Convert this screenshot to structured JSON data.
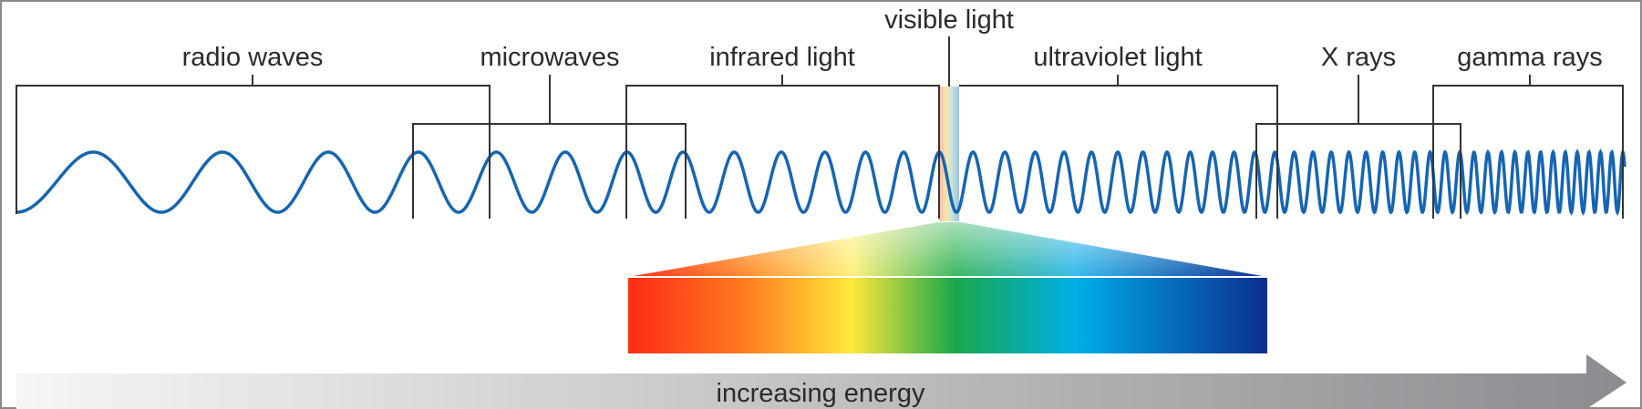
{
  "diagram": {
    "bands": [
      {
        "key": "radio",
        "label": "radio waves"
      },
      {
        "key": "micro",
        "label": "microwaves"
      },
      {
        "key": "infrared",
        "label": "infrared light"
      },
      {
        "key": "visible",
        "label": "visible light"
      },
      {
        "key": "ultraviolet",
        "label": "ultraviolet light"
      },
      {
        "key": "xray",
        "label": "X rays"
      },
      {
        "key": "gamma",
        "label": "gamma rays"
      }
    ],
    "arrow_label": "increasing energy",
    "colors": {
      "wave": "#1565b3",
      "arrow_start": "#f5f6f6",
      "arrow_end": "#8a8c8f",
      "spectrum": [
        "#ff2a16",
        "#ff7a1f",
        "#ffe83a",
        "#1aa84a",
        "#00aee8",
        "#0c2d8f"
      ]
    }
  }
}
